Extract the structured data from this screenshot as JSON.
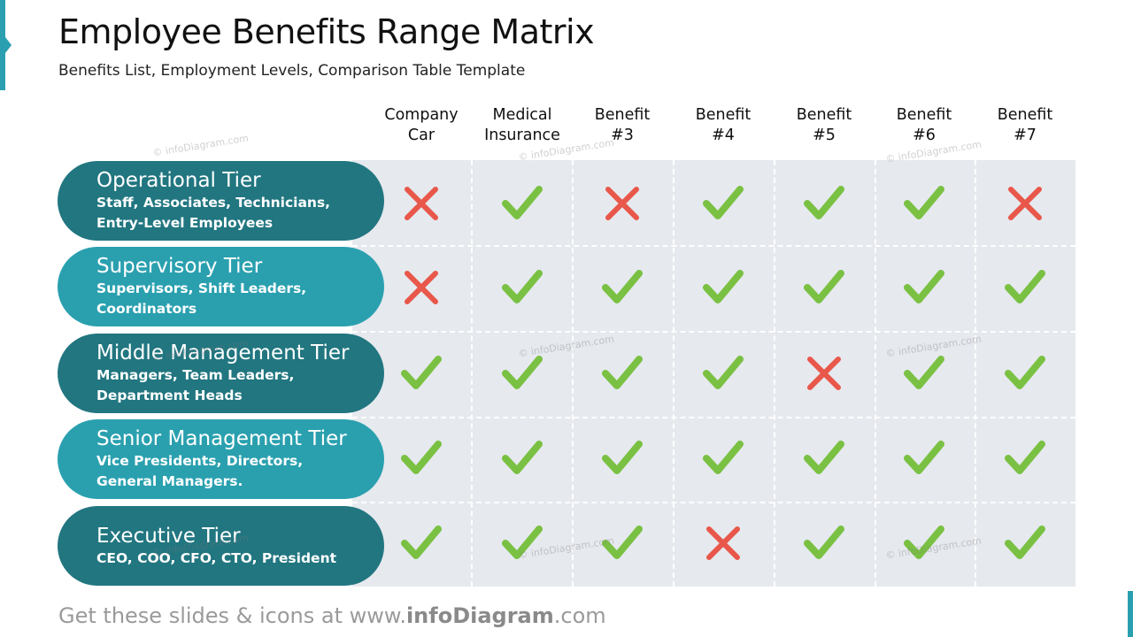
{
  "header": {
    "title": "Employee Benefits Range Matrix",
    "subtitle": "Benefits List, Employment Levels, Comparison Table Template"
  },
  "columns": [
    {
      "line1": "Company",
      "line2": "Car"
    },
    {
      "line1": "Medical",
      "line2": "Insurance"
    },
    {
      "line1": "Benefit",
      "line2": "#3"
    },
    {
      "line1": "Benefit",
      "line2": "#4"
    },
    {
      "line1": "Benefit",
      "line2": "#5"
    },
    {
      "line1": "Benefit",
      "line2": "#6"
    },
    {
      "line1": "Benefit",
      "line2": "#7"
    }
  ],
  "tiers": [
    {
      "title": "Operational Tier",
      "desc": "Staff, Associates, Technicians, Entry-Level Employees",
      "style": "dark",
      "benefits": [
        false,
        true,
        false,
        true,
        true,
        true,
        false
      ]
    },
    {
      "title": "Supervisory Tier",
      "desc": "Supervisors, Shift Leaders, Coordinators",
      "style": "light",
      "benefits": [
        false,
        true,
        true,
        true,
        true,
        true,
        true
      ]
    },
    {
      "title": "Middle Management Tier",
      "desc": "Managers, Team Leaders, Department Heads",
      "style": "dark",
      "benefits": [
        true,
        true,
        true,
        true,
        false,
        true,
        true
      ]
    },
    {
      "title": "Senior Management Tier",
      "desc": "Vice Presidents, Directors, General Managers.",
      "style": "light",
      "benefits": [
        true,
        true,
        true,
        true,
        true,
        true,
        true
      ]
    },
    {
      "title": "Executive Tier",
      "desc": "CEO, COO, CFO, CTO, President",
      "style": "dark",
      "benefits": [
        true,
        true,
        true,
        false,
        true,
        true,
        true
      ]
    }
  ],
  "icons": {
    "yes": "checkmark-icon",
    "no": "cross-icon"
  },
  "colors": {
    "dark_tier": "#217680",
    "light_tier": "#2aa0af",
    "check": "#7ac143",
    "cross": "#e8574a",
    "grid": "#e6e9ee"
  },
  "watermark": "© infoDiagram.com",
  "footer": {
    "prefix": "Get these slides & icons at www.",
    "brand": "infoDiagram",
    "suffix": ".com"
  }
}
